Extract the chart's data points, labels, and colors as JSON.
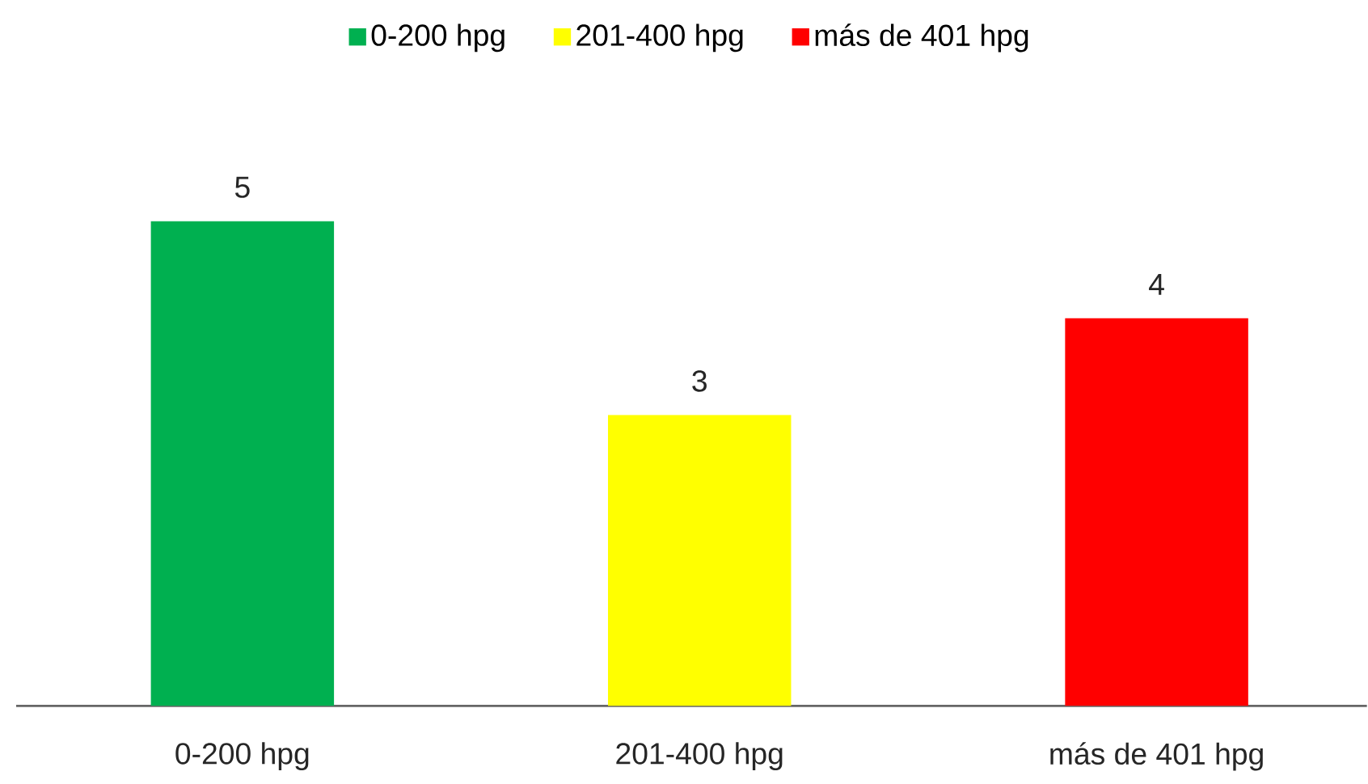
{
  "chart_data": {
    "type": "bar",
    "categories": [
      "0-200 hpg",
      "201-400 hpg",
      "más de 401 hpg"
    ],
    "series": [
      {
        "name": "0-200 hpg",
        "color": "#00b050",
        "values": [
          5,
          null,
          null
        ]
      },
      {
        "name": "201-400 hpg",
        "color": "#ffff00",
        "values": [
          null,
          3,
          null
        ]
      },
      {
        "name": "más de 401 hpg",
        "color": "#ff0000",
        "values": [
          null,
          null,
          4
        ]
      }
    ],
    "data_labels": true,
    "legend": "top"
  }
}
